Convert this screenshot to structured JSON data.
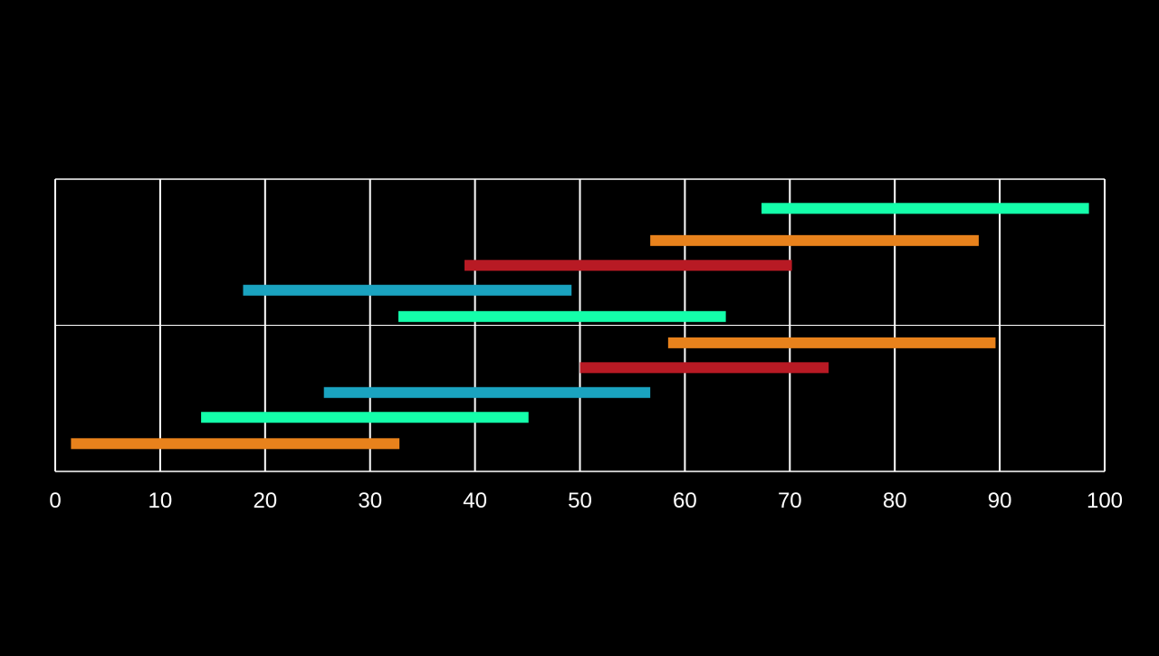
{
  "colors": {
    "background": "#000000",
    "grid": "#ffffff",
    "tick_label": "#ffffff",
    "mint": "#14ffaa",
    "orange": "#e8821c",
    "red": "#b81a24",
    "blue": "#1aa3c0"
  },
  "chart_data": {
    "type": "bar",
    "orientation": "horizontal",
    "style": "floating range bars",
    "title": "",
    "xlabel": "",
    "ylabel": "",
    "xlim": [
      0,
      100
    ],
    "xticks": [
      0,
      10,
      20,
      30,
      40,
      50,
      60,
      70,
      80,
      90,
      100
    ],
    "xtick_labels": [
      "0",
      "10",
      "20",
      "30",
      "40",
      "50",
      "60",
      "70",
      "80",
      "90",
      "100"
    ],
    "y_range": [
      0,
      2
    ],
    "y_gridlines": [
      0,
      1,
      2
    ],
    "grid": true,
    "legend": "none",
    "bars": [
      {
        "start": 1.5,
        "end": 32.8,
        "y": 0.19,
        "color": "orange"
      },
      {
        "start": 13.9,
        "end": 45.1,
        "y": 0.37,
        "color": "mint"
      },
      {
        "start": 25.6,
        "end": 56.7,
        "y": 0.54,
        "color": "blue"
      },
      {
        "start": 50.0,
        "end": 73.7,
        "y": 0.71,
        "color": "red"
      },
      {
        "start": 58.4,
        "end": 89.6,
        "y": 0.88,
        "color": "orange"
      },
      {
        "start": 32.7,
        "end": 63.9,
        "y": 1.06,
        "color": "mint"
      },
      {
        "start": 17.9,
        "end": 49.2,
        "y": 1.24,
        "color": "blue"
      },
      {
        "start": 39.0,
        "end": 70.2,
        "y": 1.41,
        "color": "red"
      },
      {
        "start": 56.7,
        "end": 88.0,
        "y": 1.58,
        "color": "orange"
      },
      {
        "start": 67.3,
        "end": 98.5,
        "y": 1.8,
        "color": "mint"
      }
    ]
  }
}
